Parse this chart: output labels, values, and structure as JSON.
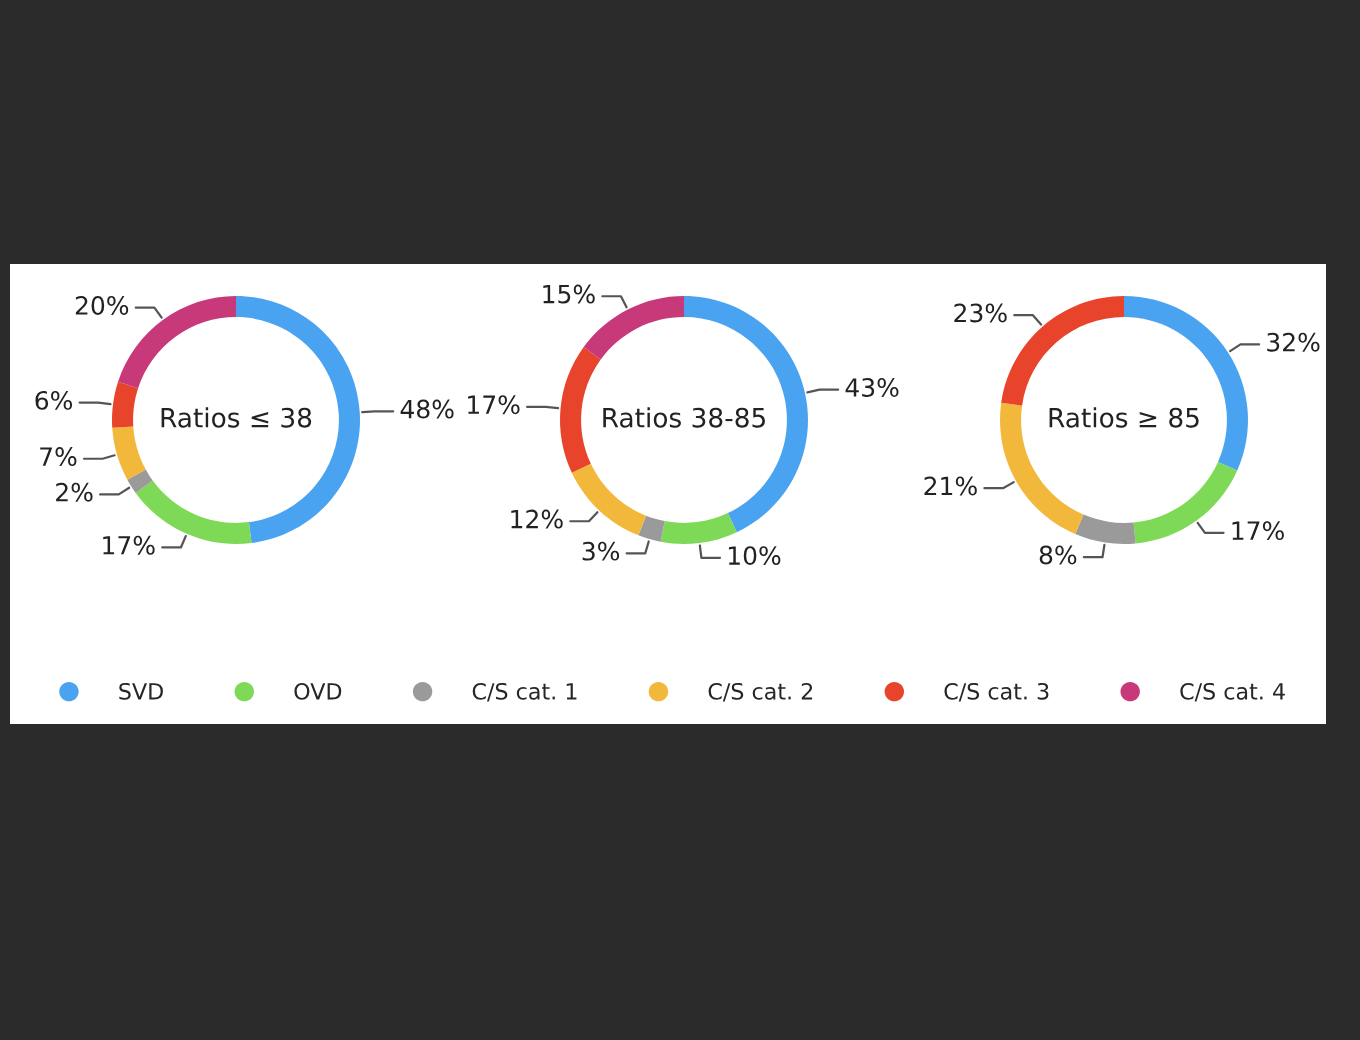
{
  "chart_data": [
    {
      "type": "donut",
      "title": "Ratios ≤ 38",
      "categories": [
        "SVD",
        "OVD",
        "C/S cat. 1",
        "C/S cat. 2",
        "C/S cat. 3",
        "C/S cat. 4"
      ],
      "values": [
        48,
        17,
        2,
        7,
        6,
        20
      ],
      "value_labels": [
        "48%",
        "17%",
        "2%",
        "7%",
        "6%",
        "20%"
      ],
      "colors": [
        "#4aa3f0",
        "#7ed957",
        "#9a9a9a",
        "#f2b83c",
        "#e8442c",
        "#c8397a"
      ],
      "legend": "bottom"
    },
    {
      "type": "donut",
      "title": "Ratios 38-85",
      "categories": [
        null,
        null,
        null,
        null,
        null,
        null
      ],
      "values": [
        43,
        10,
        3,
        12,
        17,
        15
      ],
      "value_labels": [
        "43%",
        "10%",
        "3%",
        "12%",
        "17%",
        "15%"
      ],
      "colors": [
        "#4aa3f0",
        "#7ed957",
        "#9a9a9a",
        "#f2b83c",
        "#e8442c",
        "#c8397a"
      ]
    },
    {
      "type": "donut",
      "title": "Ratios ≥ 85",
      "categories": [
        null,
        null,
        null,
        null,
        null
      ],
      "values": [
        32,
        17,
        8,
        21,
        23
      ],
      "value_labels": [
        "32%",
        "17%",
        "8%",
        "21%",
        "23%"
      ],
      "colors": [
        "#4aa3f0",
        "#7ed957",
        "#9a9a9a",
        "#f2b83c",
        "#e8442c"
      ]
    }
  ]
}
